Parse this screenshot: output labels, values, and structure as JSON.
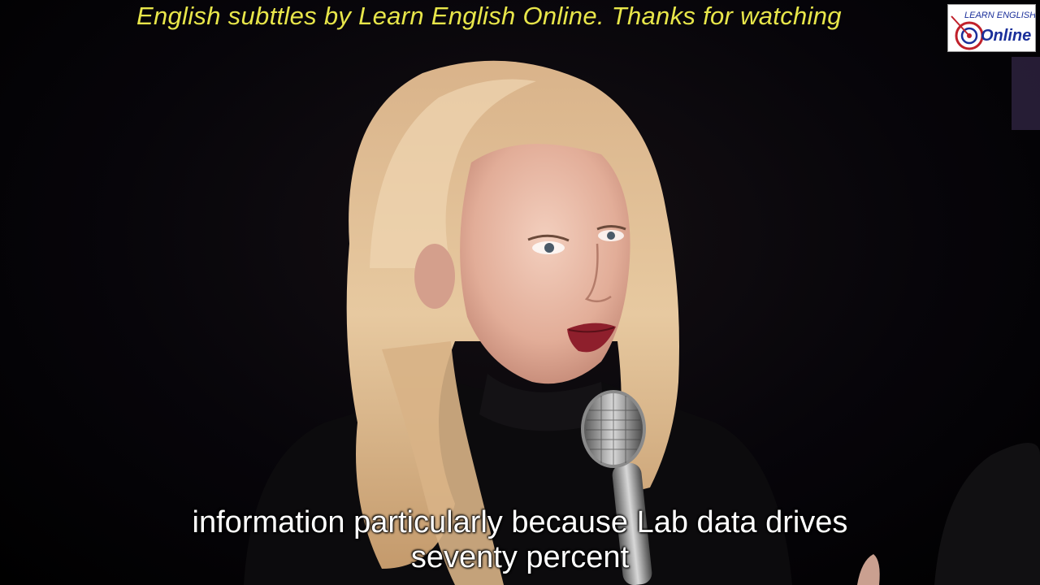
{
  "banner": {
    "text": "English subttles by Learn English Online. Thanks for watching"
  },
  "logo": {
    "line1": "LEARN ENGLISH",
    "line2": "Online"
  },
  "subtitles": {
    "line1": "information particularly because Lab data drives",
    "line2": "seventy percent"
  },
  "colors": {
    "banner": "#e8e64a",
    "subtitle": "#ffffff",
    "background": "#000000",
    "logo_accent": "#c0202a",
    "logo_text": "#1a2f9a"
  },
  "icons": {
    "microphone": "microphone-icon",
    "logo_target": "target-icon"
  }
}
